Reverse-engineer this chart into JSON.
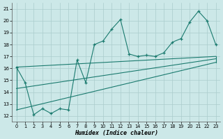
{
  "xlabel": "Humidex (Indice chaleur)",
  "color": "#1a7a6e",
  "bg_color": "#cce8e8",
  "grid_color": "#aacccc",
  "xlim": [
    -0.5,
    23.5
  ],
  "ylim": [
    11.5,
    21.5
  ],
  "xticks": [
    0,
    1,
    2,
    3,
    4,
    5,
    6,
    7,
    8,
    9,
    10,
    11,
    12,
    13,
    14,
    15,
    16,
    17,
    18,
    19,
    20,
    21,
    22,
    23
  ],
  "yticks": [
    12,
    13,
    14,
    15,
    16,
    17,
    18,
    19,
    20,
    21
  ],
  "main_x": [
    0,
    1,
    2,
    3,
    4,
    5,
    6,
    7,
    8,
    9,
    10,
    11,
    12,
    13,
    14,
    15,
    16,
    17,
    18,
    19,
    20,
    21,
    22,
    23
  ],
  "main_y": [
    16.1,
    14.8,
    12.1,
    12.6,
    12.2,
    12.6,
    12.5,
    16.7,
    14.8,
    18.0,
    18.3,
    19.3,
    20.1,
    17.2,
    17.0,
    17.1,
    17.0,
    17.3,
    18.2,
    18.5,
    19.9,
    20.8,
    20.0,
    18.0
  ],
  "upper_line_x": [
    0,
    23
  ],
  "upper_line_y": [
    16.1,
    17.0
  ],
  "lower_line_x": [
    0,
    23
  ],
  "lower_line_y": [
    12.5,
    16.5
  ],
  "mid_line_x": [
    0,
    23
  ],
  "mid_line_y": [
    14.3,
    16.8
  ]
}
